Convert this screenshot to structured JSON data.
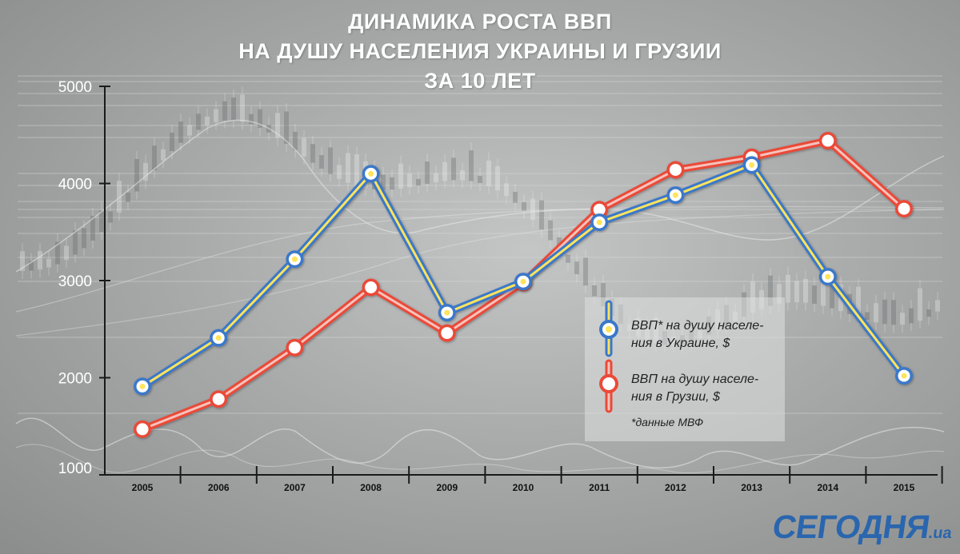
{
  "title": {
    "line1": "ДИНАМИКА РОСТА ВВП",
    "line2": "НА ДУШУ НАСЕЛЕНИЯ УКРАИНЫ И ГРУЗИИ",
    "line3": "ЗА 10 ЛЕТ"
  },
  "legend": {
    "ukraine_line1": "ВВП* на душу населе-",
    "ukraine_line2": "ния в Украине, $",
    "georgia_line1": "ВВП на душу населе-",
    "georgia_line2": "ния в Грузии, $",
    "note": "*данные МВФ"
  },
  "logo": {
    "name": "СЕГОДНЯ",
    "domain": ".ua"
  },
  "colors": {
    "ukraine_blue": "#3a78c9",
    "ukraine_yellow": "#ffe45c",
    "georgia_red": "#ea4a38",
    "axis": "#1a1a1a",
    "logo": "#2a66ae"
  },
  "chart_data": {
    "type": "line",
    "categories": [
      "2005",
      "2006",
      "2007",
      "2008",
      "2009",
      "2010",
      "2011",
      "2012",
      "2013",
      "2014",
      "2015"
    ],
    "yticks": [
      "1000",
      "2000",
      "3000",
      "4000",
      "5000"
    ],
    "ylim": [
      1000,
      5000
    ],
    "grid": false,
    "legend_position": "right",
    "series": [
      {
        "name": "ВВП* на душу населения в Украине, $",
        "values": [
          1910,
          2410,
          3220,
          4100,
          2670,
          2990,
          3600,
          3880,
          4190,
          3040,
          2020
        ]
      },
      {
        "name": "ВВП на душу населения в Грузии, $",
        "values": [
          1470,
          1780,
          2310,
          2930,
          2460,
          2980,
          3730,
          4140,
          4270,
          4440,
          3740
        ]
      }
    ]
  }
}
